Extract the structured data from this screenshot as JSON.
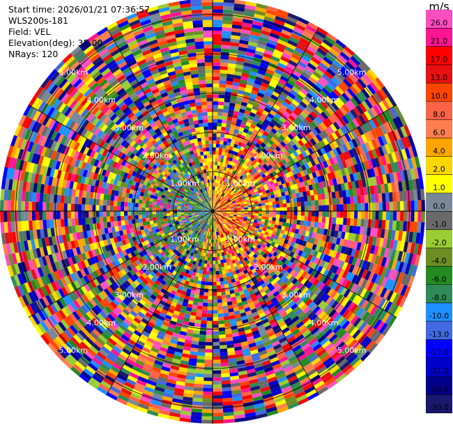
{
  "header": {
    "start_time": "Start time: 2026/01/21 07:36:57",
    "instrument": "WLS200s-181",
    "field": "Field: VEL",
    "elevation": "Elevation(deg): 35.00",
    "nrays": "NRays: 120"
  },
  "chart_data": {
    "type": "heatmap",
    "projection": "polar",
    "field": "VEL",
    "nrays": 120,
    "range_rings_km": [
      1,
      2,
      3,
      4,
      5
    ],
    "range_labels": [
      "1.00km",
      "2.00km",
      "3.00km",
      "4.00km",
      "5.00km"
    ],
    "max_range_km": 5.4,
    "colorbar": {
      "unit": "m/s",
      "ticks": [
        "26.0",
        "21.0",
        "17.0",
        "13.0",
        "10.0",
        "8.0",
        "6.0",
        "4.0",
        "2.0",
        "1.0",
        "0.0",
        "-1.0",
        "-2.0",
        "-4.0",
        "-6.0",
        "-8.0",
        "-10.0",
        "-13.0",
        "-17.0",
        "-21.0",
        "-26.0",
        "-30.0"
      ],
      "colors": [
        "#ff4ec0",
        "#ff1493",
        "#ff0000",
        "#e81010",
        "#ff4500",
        "#ff6347",
        "#ff7f50",
        "#ffa500",
        "#ffd700",
        "#ffff00",
        "#778899",
        "#696969",
        "#9acd32",
        "#6b8e23",
        "#228b22",
        "#2e8b57",
        "#1e90ff",
        "#4169e1",
        "#0000ff",
        "#0000cd",
        "#00008b",
        "#191970"
      ]
    }
  }
}
